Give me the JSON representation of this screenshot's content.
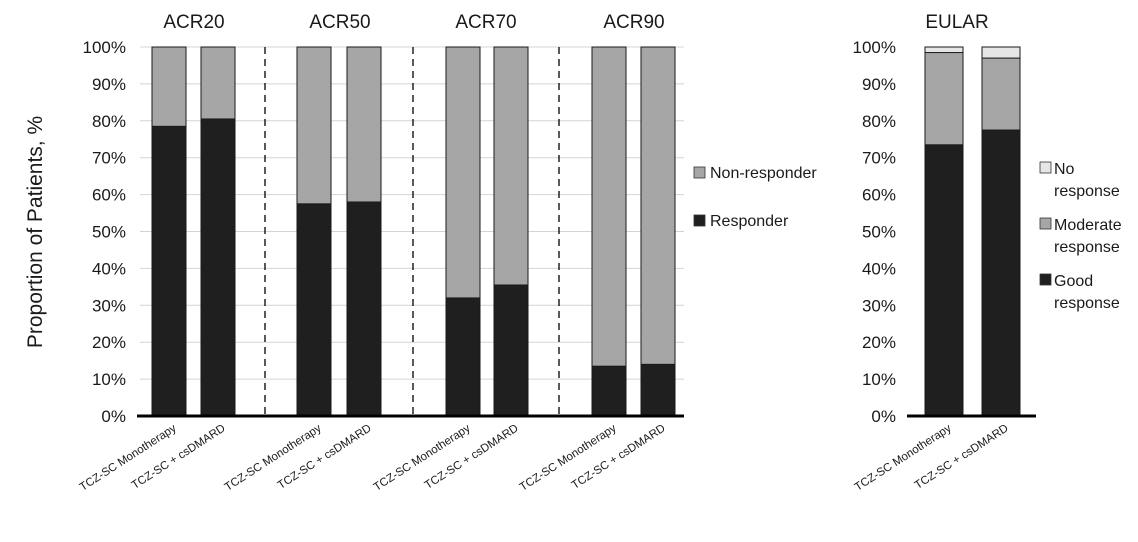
{
  "colors": {
    "responder": "#1f1f1f",
    "non_responder": "#a6a6a6",
    "good": "#1f1f1f",
    "moderate": "#a6a6a6",
    "no_response": "#e6e6e6",
    "grid": "#d4d4d4",
    "axis": "#000000"
  },
  "chart_data": [
    {
      "type": "bar",
      "stacked": true,
      "ylabel": "Proportion of Patients, %",
      "ylim": [
        0,
        100
      ],
      "yticks": [
        "0%",
        "10%",
        "20%",
        "30%",
        "40%",
        "50%",
        "60%",
        "70%",
        "80%",
        "90%",
        "100%"
      ],
      "grid": true,
      "legend": [
        "Non-responder",
        "Responder"
      ],
      "legend_placement": "right",
      "panels": [
        {
          "title": "ACR20",
          "categories": [
            "TCZ-SC Monotherapy",
            "TCZ-SC + csDMARD"
          ],
          "series": [
            {
              "name": "Responder",
              "values": [
                78.5,
                80.5
              ]
            },
            {
              "name": "Non-responder",
              "values": [
                21.5,
                19.5
              ]
            }
          ]
        },
        {
          "title": "ACR50",
          "categories": [
            "TCZ-SC Monotherapy",
            "TCZ-SC + csDMARD"
          ],
          "series": [
            {
              "name": "Responder",
              "values": [
                57.5,
                58
              ]
            },
            {
              "name": "Non-responder",
              "values": [
                42.5,
                42
              ]
            }
          ]
        },
        {
          "title": "ACR70",
          "categories": [
            "TCZ-SC Monotherapy",
            "TCZ-SC + csDMARD"
          ],
          "series": [
            {
              "name": "Responder",
              "values": [
                32,
                35.5
              ]
            },
            {
              "name": "Non-responder",
              "values": [
                68,
                64.5
              ]
            }
          ]
        },
        {
          "title": "ACR90",
          "categories": [
            "TCZ-SC Monotherapy",
            "TCZ-SC + csDMARD"
          ],
          "series": [
            {
              "name": "Responder",
              "values": [
                13.5,
                14
              ]
            },
            {
              "name": "Non-responder",
              "values": [
                86.5,
                86
              ]
            }
          ]
        }
      ]
    },
    {
      "type": "bar",
      "stacked": true,
      "title": "EULAR",
      "ylim": [
        0,
        100
      ],
      "yticks": [
        "0%",
        "10%",
        "20%",
        "30%",
        "40%",
        "50%",
        "60%",
        "70%",
        "80%",
        "90%",
        "100%"
      ],
      "grid": false,
      "legend": [
        "No response",
        "Moderate response",
        "Good response"
      ],
      "legend_placement": "right",
      "categories": [
        "TCZ-SC Monotherapy",
        "TCZ-SC + csDMARD"
      ],
      "series": [
        {
          "name": "Good response",
          "values": [
            73.5,
            77.5
          ]
        },
        {
          "name": "Moderate response",
          "values": [
            25,
            19.5
          ]
        },
        {
          "name": "No response",
          "values": [
            1.5,
            3
          ]
        }
      ]
    }
  ],
  "legend_left": [
    {
      "line1": "Non-responder",
      "line2": "",
      "color_key": "non_responder"
    },
    {
      "line1": "Responder",
      "line2": "",
      "color_key": "responder"
    }
  ],
  "legend_right": [
    {
      "line1": "No",
      "line2": "response",
      "color_key": "no_response"
    },
    {
      "line1": "Moderate",
      "line2": "response",
      "color_key": "moderate"
    },
    {
      "line1": "Good",
      "line2": "response",
      "color_key": "good"
    }
  ]
}
